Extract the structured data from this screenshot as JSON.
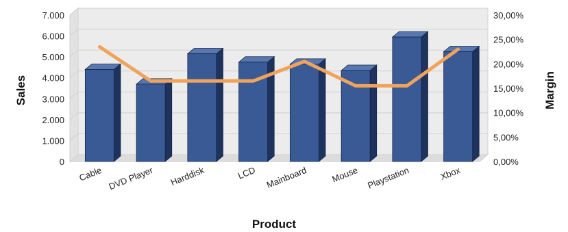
{
  "chart_data": {
    "type": "bar",
    "categories": [
      "Cable",
      "DVD Player",
      "Harddisk",
      "LCD",
      "Mainboard",
      "Mouse",
      "Playstation",
      "Xbox"
    ],
    "series": [
      {
        "name": "Sales",
        "type": "bar",
        "axis": "left",
        "values": [
          4400,
          3700,
          5150,
          4750,
          4650,
          4350,
          5950,
          5250
        ]
      },
      {
        "name": "Margin",
        "type": "line",
        "axis": "right",
        "values": [
          23.5,
          16.5,
          16.5,
          16.5,
          20.5,
          15.5,
          15.5,
          23.0
        ]
      }
    ],
    "xlabel": "Product",
    "ylabel": "Sales",
    "y2label": "Margin",
    "ylim": [
      0,
      7000
    ],
    "y2lim": [
      0,
      30
    ],
    "yticks": [
      "0",
      "1.000",
      "2.000",
      "3.000",
      "4.000",
      "5.000",
      "6.000",
      "7.000"
    ],
    "y2ticks": [
      "0,00%",
      "5,00%",
      "10,00%",
      "15,00%",
      "20,00%",
      "25,00%",
      "30,00%"
    ],
    "grid": true,
    "style": "3d",
    "colors": {
      "bar": "#3a5a96",
      "bar_side": "#1d335e",
      "bar_top": "#5777b0",
      "line": "#f0a35a",
      "wall": "#ececec"
    }
  }
}
